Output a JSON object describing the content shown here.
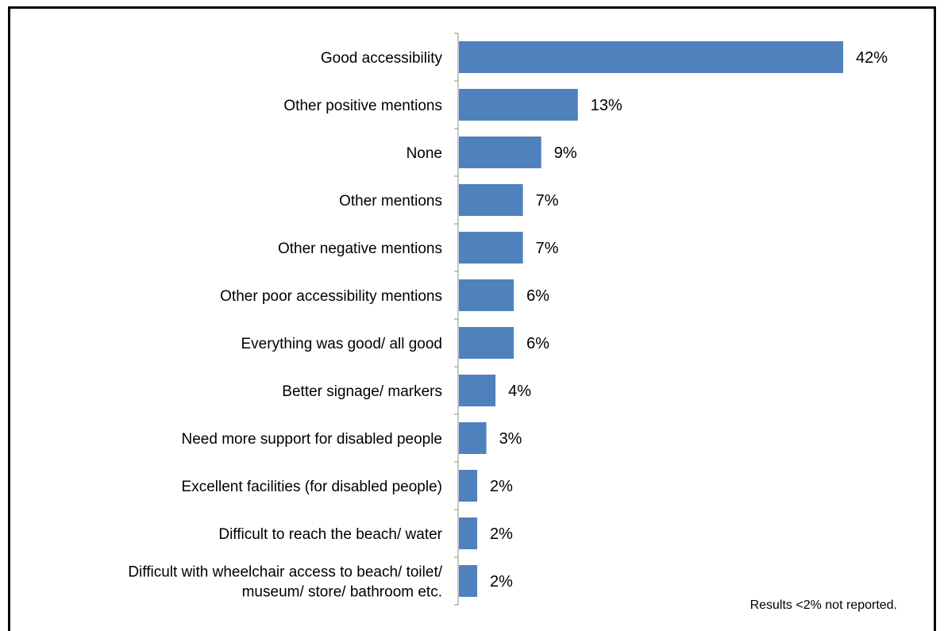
{
  "heading": "",
  "note": "Results <2% not reported.",
  "chart_data": {
    "type": "bar",
    "orientation": "horizontal",
    "title": "",
    "xlabel": "",
    "ylabel": "",
    "xlim": [
      0,
      42
    ],
    "grid": false,
    "legend": "none",
    "bar_color": "#4f81bd",
    "categories": [
      "Good accessibility",
      "Other positive mentions",
      "None",
      "Other mentions",
      "Other negative mentions",
      "Other poor accessibility mentions",
      "Everything was good/ all good",
      "Better signage/ markers",
      "Need more support for disabled people",
      "Excellent facilities (for disabled people)",
      "Difficult to reach the beach/ water",
      "Difficult with wheelchair access to beach/ toilet/\nmuseum/ store/ bathroom etc."
    ],
    "values": [
      42,
      13,
      9,
      7,
      7,
      6,
      6,
      4,
      3,
      2,
      2,
      2
    ],
    "value_labels": [
      "42%",
      "13%",
      "9%",
      "7%",
      "7%",
      "6%",
      "6%",
      "4%",
      "3%",
      "2%",
      "2%",
      "2%"
    ]
  }
}
